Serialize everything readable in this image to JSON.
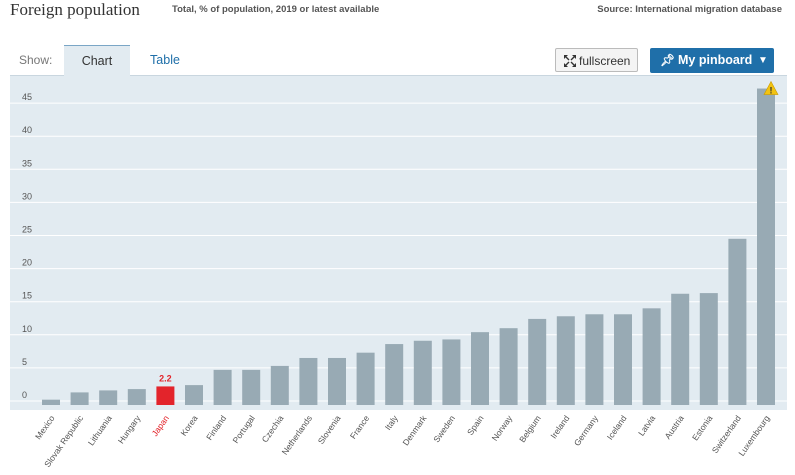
{
  "header": {
    "title": "Foreign population",
    "subtitle": "Total, % of population, 2019 or latest available",
    "source": "Source: International migration database"
  },
  "toolbar": {
    "show_label": "Show:",
    "tabs": [
      {
        "label": "Chart"
      },
      {
        "label": "Table"
      }
    ],
    "fullscreen_label": "fullscreen",
    "pinboard_label": "My pinboard"
  },
  "colors": {
    "bar": "#98aab4",
    "highlight": "#e3242b",
    "plot_bg": "#e2ebf1",
    "grid": "#ffffff",
    "accent": "#1f6fa9"
  },
  "chart_data": {
    "type": "bar",
    "title": "Foreign population",
    "ylim": [
      0,
      48
    ],
    "yticks": [
      0,
      5,
      10,
      15,
      20,
      25,
      30,
      35,
      40,
      45
    ],
    "highlight": "Japan",
    "highlight_label": "2.2",
    "warning_category": "Luxembourg",
    "categories": [
      "Mexico",
      "Slovak Republic",
      "Lithuania",
      "Hungary",
      "Japan",
      "Korea",
      "Finland",
      "Portugal",
      "Czechia",
      "Netherlands",
      "Slovenia",
      "France",
      "Italy",
      "Denmark",
      "Sweden",
      "Spain",
      "Norway",
      "Belgium",
      "Ireland",
      "Germany",
      "Iceland",
      "Latvia",
      "Austria",
      "Estonia",
      "Switzerland",
      "Luxembourg"
    ],
    "values": [
      0.2,
      1.3,
      1.6,
      1.8,
      2.2,
      2.4,
      4.7,
      4.7,
      5.3,
      6.5,
      6.5,
      7.3,
      8.6,
      9.1,
      9.3,
      10.4,
      11.0,
      12.4,
      12.8,
      13.1,
      13.1,
      14.0,
      16.2,
      16.3,
      24.5,
      47.2
    ]
  }
}
